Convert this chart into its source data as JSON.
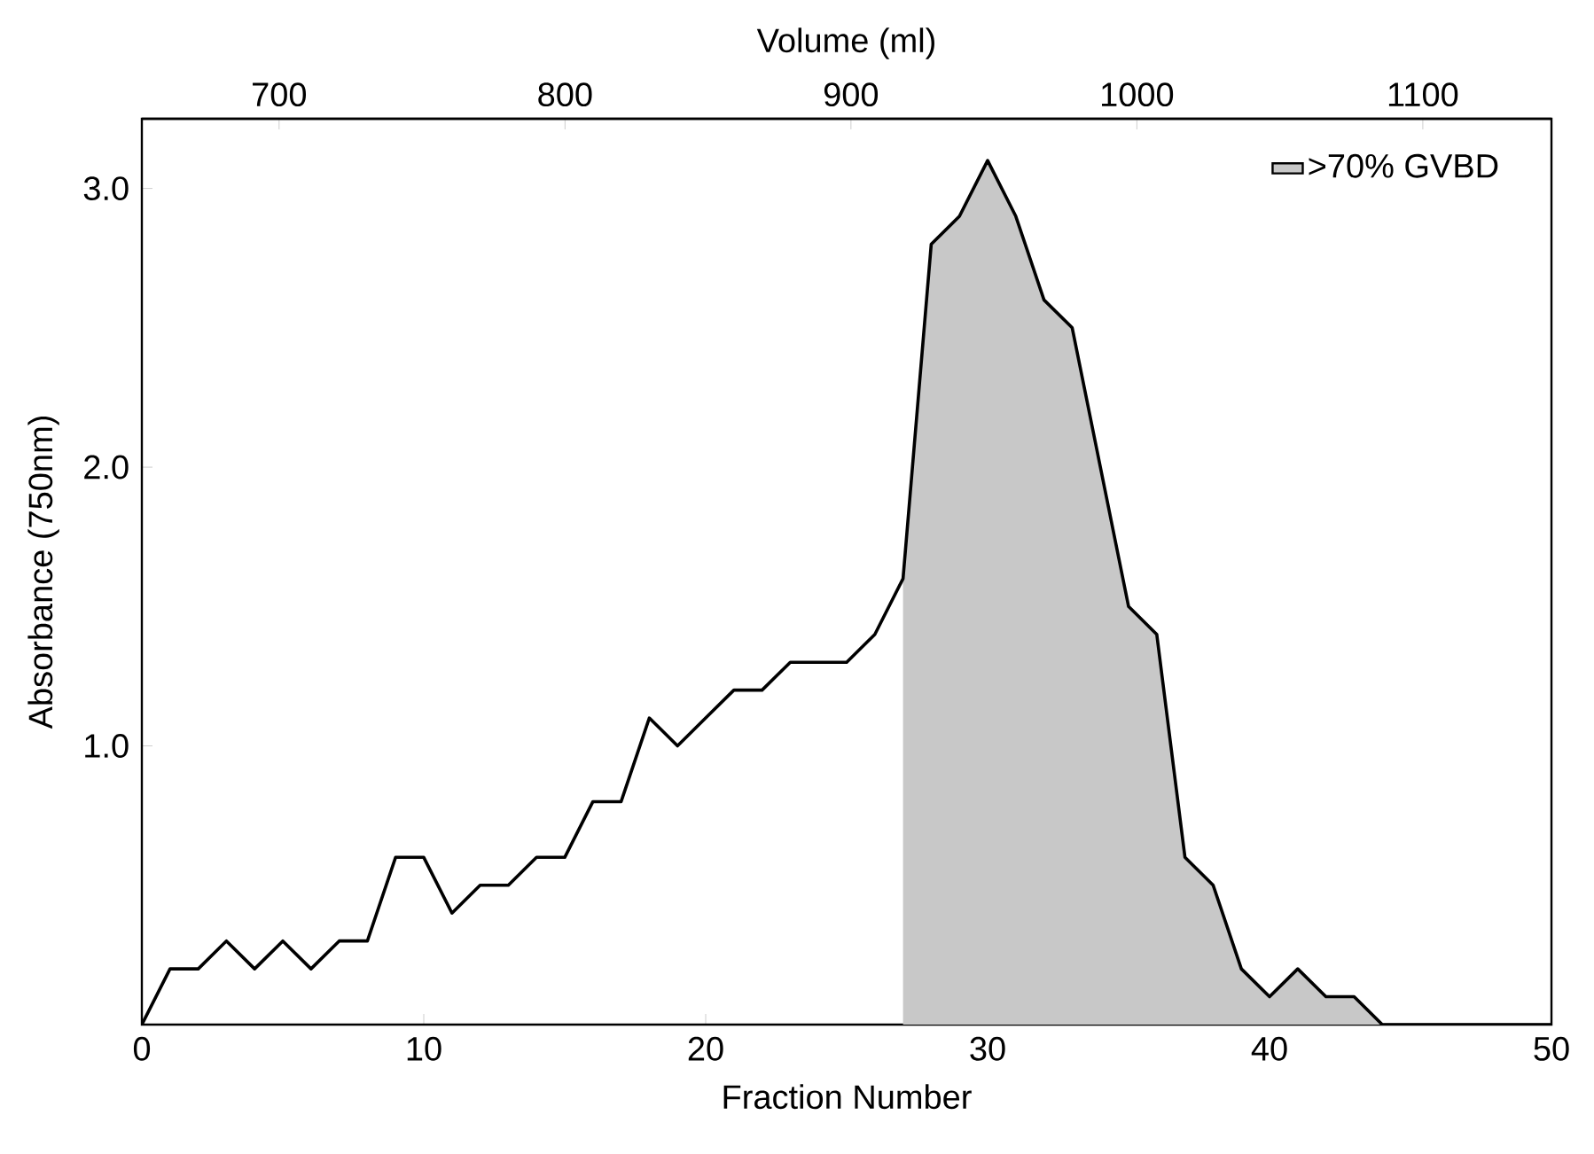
{
  "chart_data": {
    "type": "line",
    "xlabel": "Fraction Number",
    "ylabel": "Absorbance (750nm)",
    "x2label": "Volume (ml)",
    "xlim": [
      0,
      50
    ],
    "xticks": [
      0,
      10,
      20,
      30,
      40,
      50
    ],
    "ylim": [
      0,
      3.25
    ],
    "yticks": [
      {
        "value": 1,
        "label": "1.0"
      },
      {
        "value": 2,
        "label": "2.0"
      },
      {
        "value": 3,
        "label": "3.0"
      }
    ],
    "x2lim": [
      652,
      1145
    ],
    "x2ticks": [
      700,
      800,
      900,
      1000,
      1100
    ],
    "legend": "top right",
    "marker": "none",
    "line_style": "solid",
    "series": [
      {
        "type": "area",
        "name": ">70% GVBD",
        "color": "#c8c8c8",
        "x": [
          27,
          28,
          29,
          30,
          31,
          32,
          33,
          34,
          35,
          36,
          37,
          38,
          39,
          40,
          41,
          42,
          43,
          44
        ],
        "values": [
          1.6,
          2.8,
          2.9,
          3.1,
          2.9,
          2.6,
          2.5,
          2.0,
          1.5,
          1.4,
          0.6,
          0.5,
          0.2,
          0.1,
          0.2,
          0.1,
          0.1,
          0
        ]
      },
      {
        "color": "#000000",
        "x": [
          0,
          1,
          2,
          3,
          4,
          5,
          6,
          7,
          8,
          9,
          10,
          11,
          12,
          13,
          14,
          15,
          16,
          17,
          18,
          19,
          20,
          21,
          22,
          23,
          24,
          25,
          26,
          27,
          28,
          29,
          30,
          31,
          32,
          33,
          34,
          35,
          36,
          37,
          38,
          39,
          40,
          41,
          42,
          43,
          44,
          45,
          46,
          47,
          48,
          49,
          50
        ],
        "values": [
          0,
          0.2,
          0.2,
          0.3,
          0.2,
          0.3,
          0.2,
          0.3,
          0.3,
          0.6,
          0.6,
          0.4,
          0.5,
          0.5,
          0.6,
          0.6,
          0.8,
          0.8,
          1.1,
          1.0,
          1.1,
          1.2,
          1.2,
          1.3,
          1.3,
          1.3,
          1.4,
          1.6,
          2.8,
          2.9,
          3.1,
          2.9,
          2.6,
          2.5,
          2.0,
          1.5,
          1.4,
          0.6,
          0.5,
          0.2,
          0.1,
          0.2,
          0.1,
          0.1,
          0,
          0,
          0,
          0,
          0,
          0,
          0
        ]
      }
    ]
  }
}
